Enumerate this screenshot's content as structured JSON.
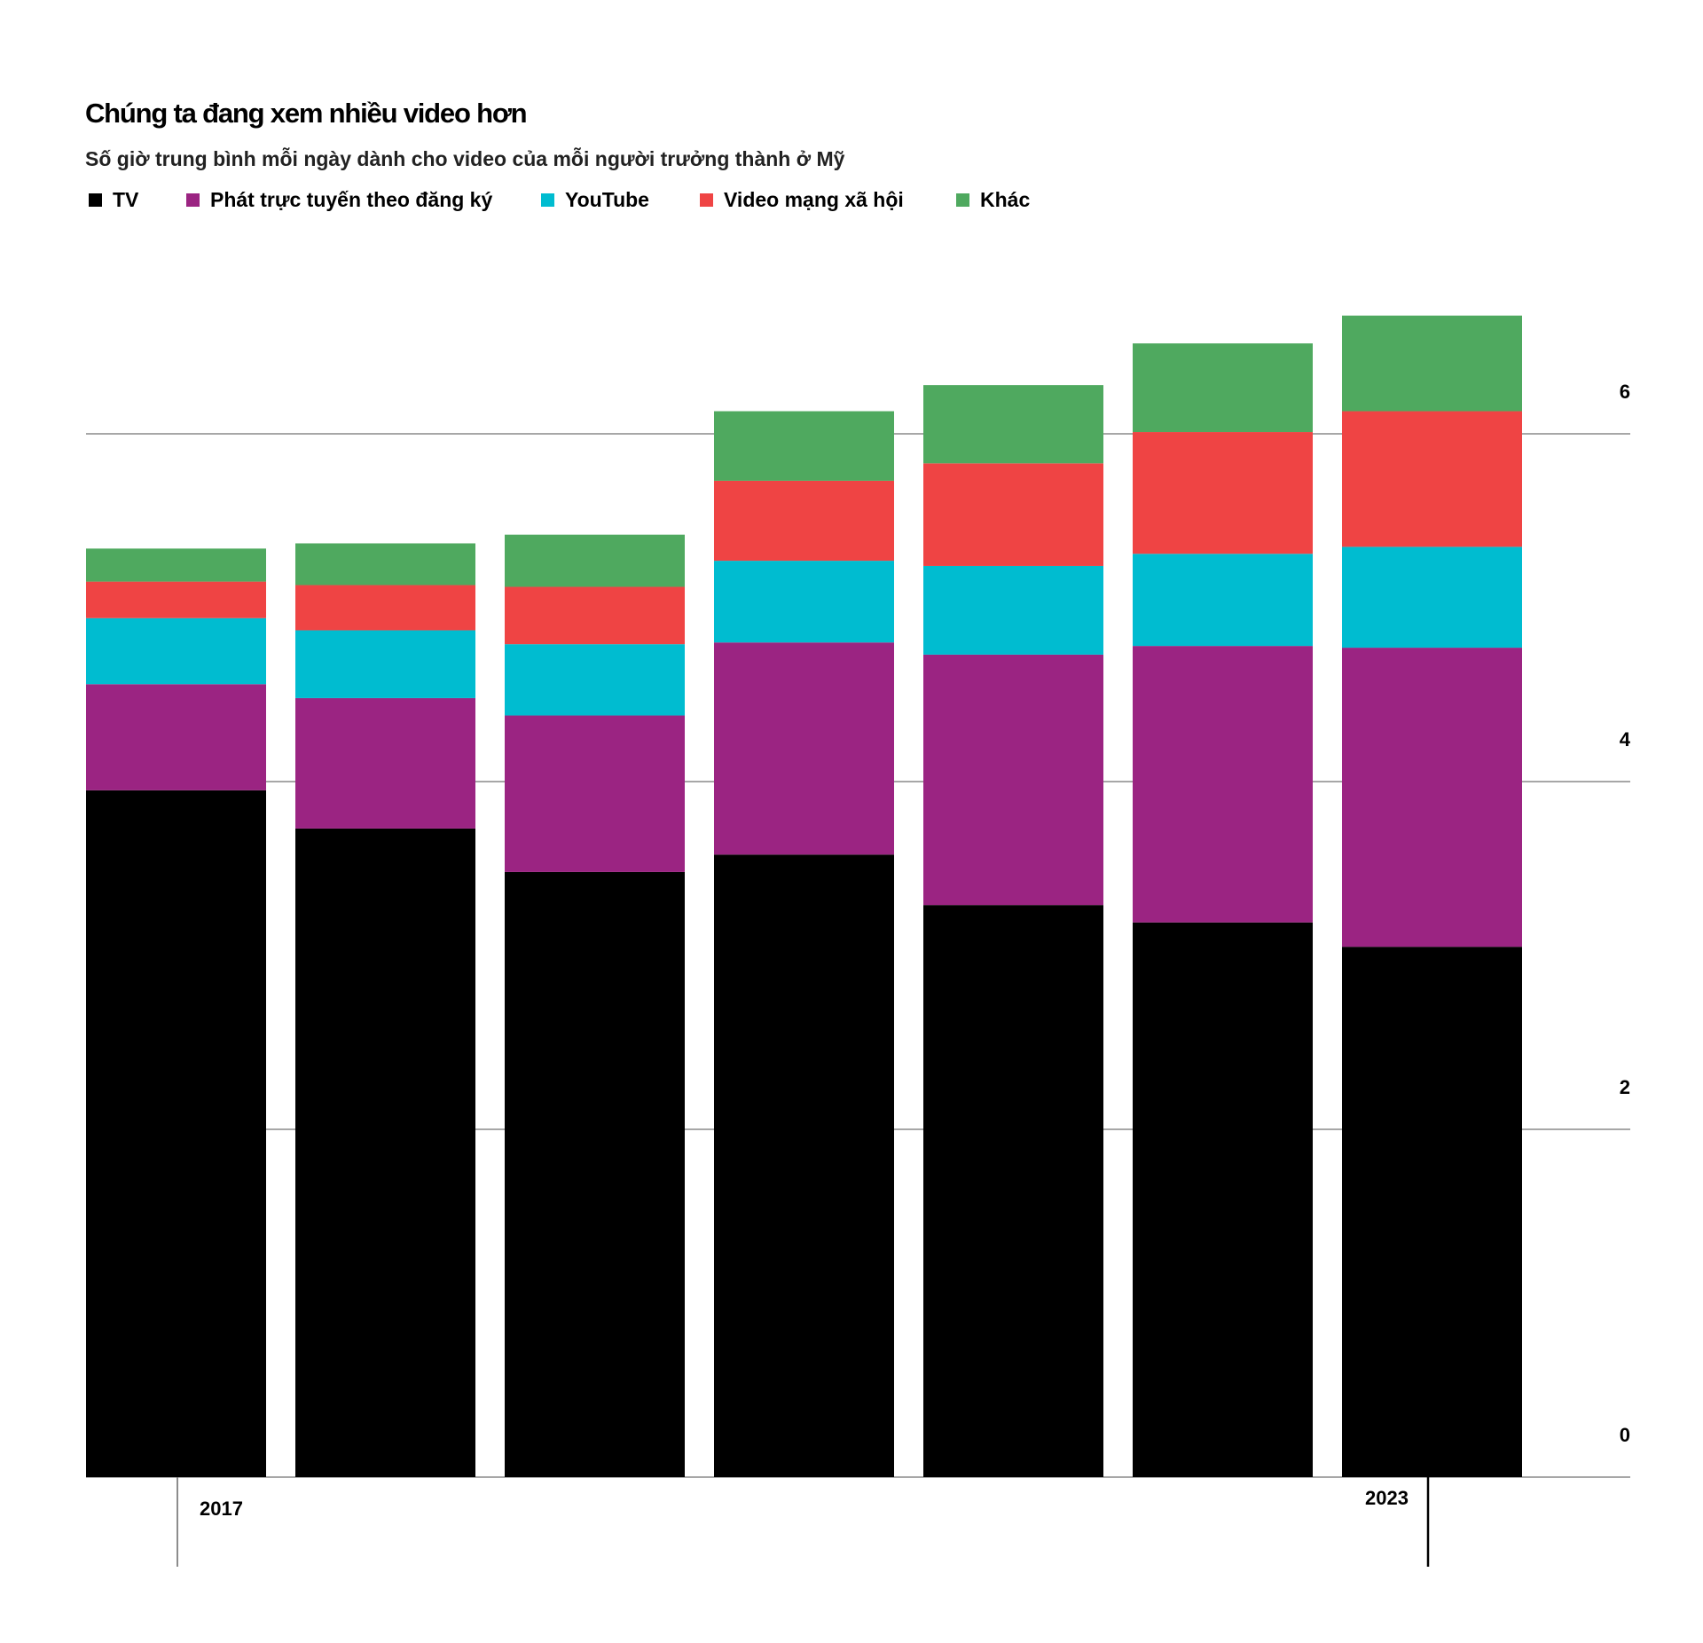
{
  "title": "Chúng ta đang xem nhiều video hơn",
  "subtitle": "Số giờ trung bình mỗi ngày dành cho video của mỗi người trưởng thành ở Mỹ",
  "colors": {
    "tv": "#000000",
    "streaming": "#9b2482",
    "youtube": "#00bcd0",
    "social": "#ef4444",
    "other": "#4fa95f",
    "grid": "#8a8a8a"
  },
  "chart_data": {
    "type": "bar",
    "stacked": true,
    "categories": [
      "2017",
      "",
      "",
      "",
      "",
      "",
      "2023"
    ],
    "series": [
      {
        "name": "TV",
        "color": "#000000",
        "values": [
          3.95,
          3.73,
          3.48,
          3.58,
          3.29,
          3.19,
          3.05
        ]
      },
      {
        "name": "Phát trực tuyến theo đăng ký",
        "color": "#9b2482",
        "values": [
          0.61,
          0.75,
          0.9,
          1.22,
          1.44,
          1.59,
          1.72
        ]
      },
      {
        "name": "YouTube",
        "color": "#00bcd0",
        "values": [
          0.38,
          0.39,
          0.41,
          0.47,
          0.51,
          0.53,
          0.58
        ]
      },
      {
        "name": "Video mạng xã hội",
        "color": "#ef4444",
        "values": [
          0.21,
          0.26,
          0.33,
          0.46,
          0.59,
          0.7,
          0.78
        ]
      },
      {
        "name": "Khác",
        "color": "#4fa95f",
        "values": [
          0.19,
          0.24,
          0.3,
          0.4,
          0.45,
          0.51,
          0.55
        ]
      }
    ],
    "y_ticks": [
      0,
      2,
      4,
      6
    ],
    "ylim": [
      0,
      6.7
    ],
    "y_axis_position": "right",
    "grid": true,
    "legend_position": "top-left",
    "xlabel": "",
    "ylabel": ""
  }
}
